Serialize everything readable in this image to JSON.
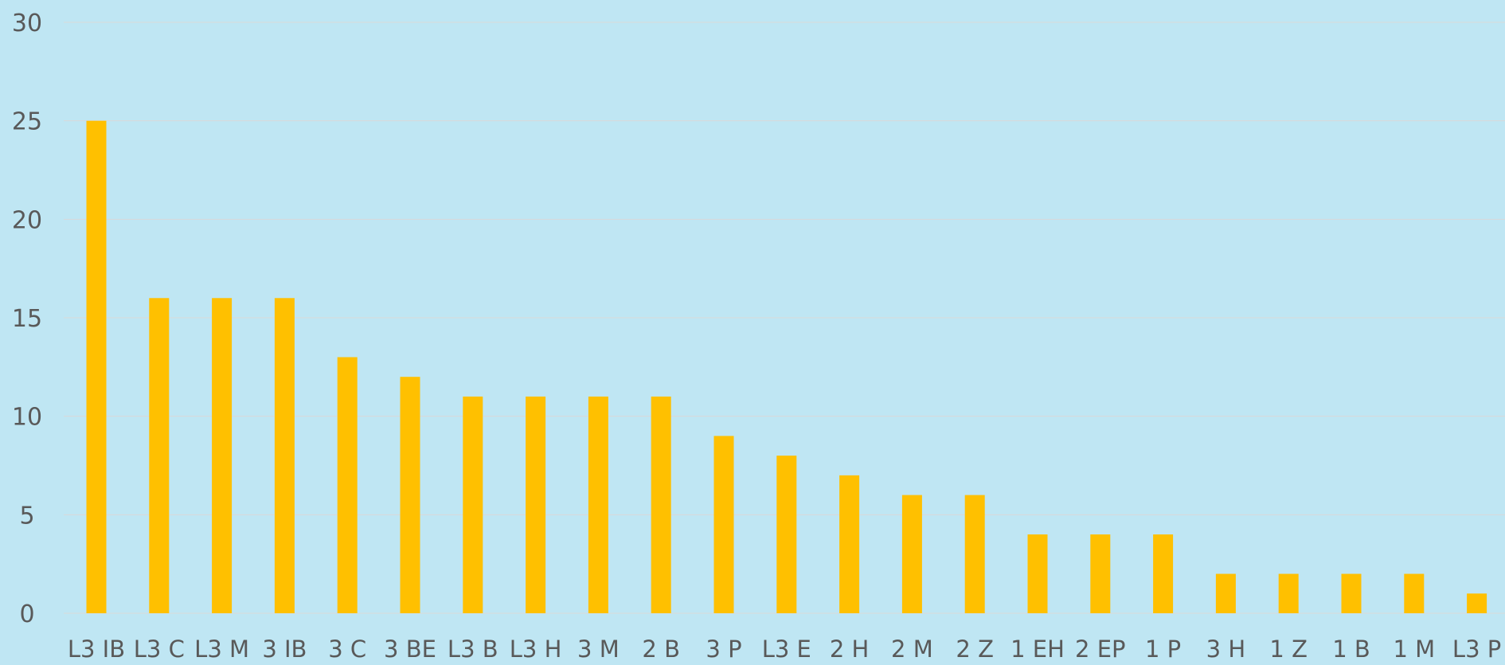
{
  "chart_data": {
    "type": "bar",
    "title": "",
    "xlabel": "",
    "ylabel": "",
    "categories": [
      "L3 IB",
      "L3 C",
      "L3 M",
      "3 IB",
      "3 C",
      "3 BE",
      "L3 B",
      "L3 H",
      "3 M",
      "2 B",
      "3 P",
      "L3 E",
      "2 H",
      "2 M",
      "2 Z",
      "1 EH",
      "2 EP",
      "1 P",
      "3 H",
      "1 Z",
      "1 B",
      "1 M",
      "L3 P"
    ],
    "values": [
      25,
      16,
      16,
      16,
      13,
      12,
      11,
      11,
      11,
      11,
      9,
      8,
      7,
      6,
      6,
      4,
      4,
      4,
      2,
      2,
      2,
      2,
      1
    ],
    "ylim": [
      0,
      30
    ],
    "yticks": [
      0,
      5,
      10,
      15,
      20,
      25,
      30
    ],
    "grid": true,
    "colors": {
      "background": "#bfe6f3",
      "bar": "#ffc000",
      "text": "#595959",
      "grid": "#d9d9d9"
    }
  }
}
